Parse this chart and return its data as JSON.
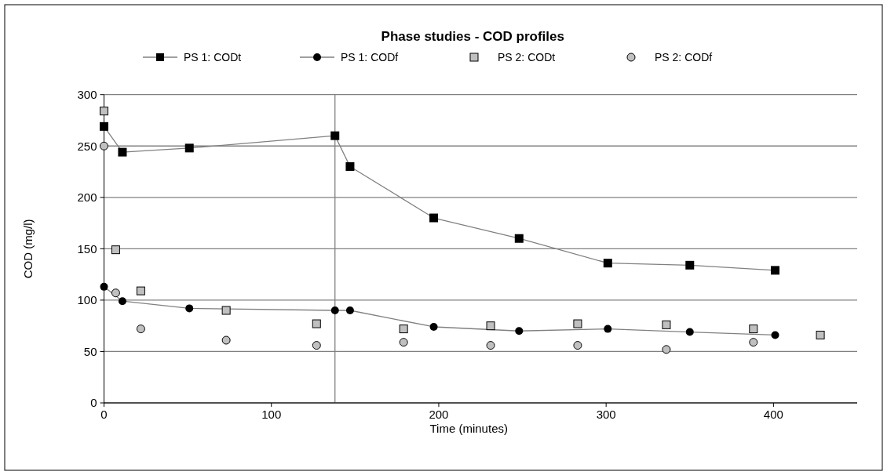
{
  "chart_data": {
    "type": "line",
    "title": "Phase studies - COD profiles",
    "xlabel": "Time (minutes)",
    "ylabel": "COD (mg/l)",
    "xlim": [
      0,
      450
    ],
    "xticks": [
      0,
      100,
      200,
      300,
      400
    ],
    "ylim": [
      0,
      300
    ],
    "yticks": [
      0,
      50,
      100,
      150,
      200,
      250,
      300
    ],
    "grid": "y",
    "legend": "top",
    "ref_lines": [
      {
        "axis": "x",
        "value": 138,
        "color": "#808080"
      }
    ],
    "series": [
      {
        "name": "PS 1: CODt",
        "marker": "square",
        "color": "#000000",
        "x": [
          0,
          11,
          51,
          138,
          147,
          197,
          248,
          301,
          350,
          401
        ],
        "values": [
          269,
          244,
          248,
          260,
          230,
          180,
          160,
          136,
          134,
          129
        ]
      },
      {
        "name": "PS 1: CODf",
        "marker": "circle",
        "color": "#000000",
        "x": [
          0,
          11,
          51,
          138,
          147,
          197,
          248,
          301,
          350,
          401
        ],
        "values": [
          113,
          99,
          92,
          90,
          90,
          74,
          70,
          72,
          69,
          66
        ]
      },
      {
        "name": "PS 2: CODt",
        "type": "scatter",
        "marker": "square",
        "color": "#c0c0c0",
        "x": [
          0,
          7,
          22,
          73,
          127,
          179,
          231,
          283,
          336,
          388,
          428
        ],
        "values": [
          284,
          149,
          109,
          90,
          77,
          72,
          75,
          77,
          76,
          72,
          66
        ]
      },
      {
        "name": "PS 2: CODf",
        "type": "scatter",
        "marker": "circle",
        "color": "#c0c0c0",
        "x": [
          0,
          7,
          22,
          73,
          127,
          179,
          231,
          283,
          336,
          388
        ],
        "values": [
          250,
          107,
          72,
          61,
          56,
          59,
          56,
          56,
          52,
          59
        ]
      }
    ]
  }
}
